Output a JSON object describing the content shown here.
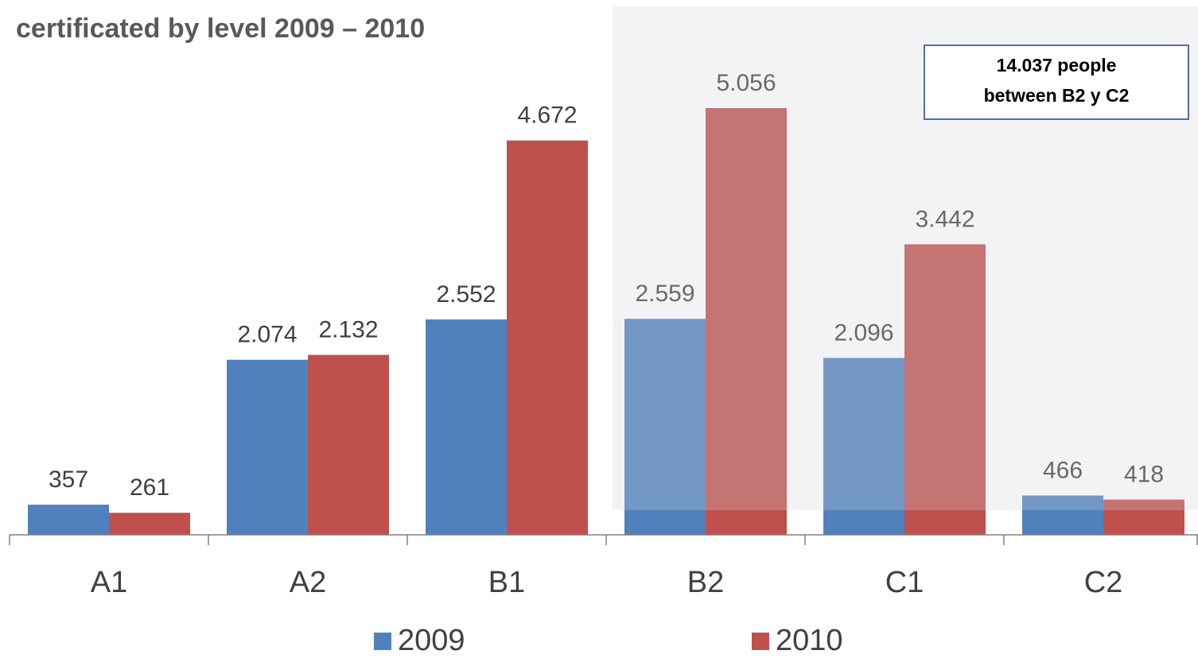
{
  "chart_data": {
    "type": "bar",
    "title": "certificated by level 2009 – 2010",
    "categories": [
      "A1",
      "A2",
      "B1",
      "B2",
      "C1",
      "C2"
    ],
    "series": [
      {
        "name": "2009",
        "color": "#4f81bd",
        "values": [
          357,
          2074,
          2552,
          2559,
          2096,
          466
        ],
        "value_labels": [
          "357",
          "2.074",
          "2.552",
          "2.559",
          "2.096",
          "466"
        ]
      },
      {
        "name": "2010",
        "color": "#c0504d",
        "values": [
          261,
          2132,
          4672,
          5056,
          3442,
          418
        ],
        "value_labels": [
          "261",
          "2.132",
          "4.672",
          "5.056",
          "3.442",
          "418"
        ]
      }
    ],
    "annotation": [
      "14.037 people",
      "between B2 y C2"
    ]
  }
}
